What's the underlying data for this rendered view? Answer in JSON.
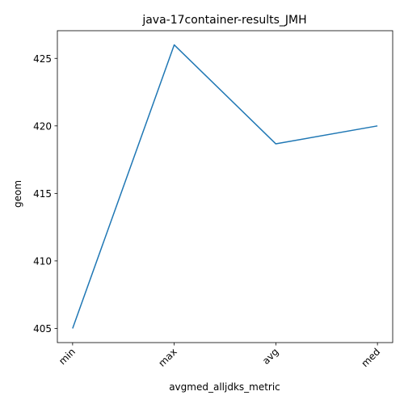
{
  "chart_data": {
    "type": "line",
    "title": "java-17container-results_JMH",
    "xlabel": "avgmed_alljdks_metric",
    "ylabel": "geom",
    "categories": [
      "min",
      "max",
      "avg",
      "med"
    ],
    "series": [
      {
        "values": [
          405.0,
          426.0,
          418.67,
          420.0
        ]
      }
    ],
    "ylim": [
      403.95,
      427.05
    ],
    "yticks": [
      405,
      410,
      415,
      420,
      425
    ],
    "yticklabels": [
      "405",
      "410",
      "415",
      "420",
      "425"
    ],
    "grid": false,
    "line_color": "#1f77b4"
  }
}
